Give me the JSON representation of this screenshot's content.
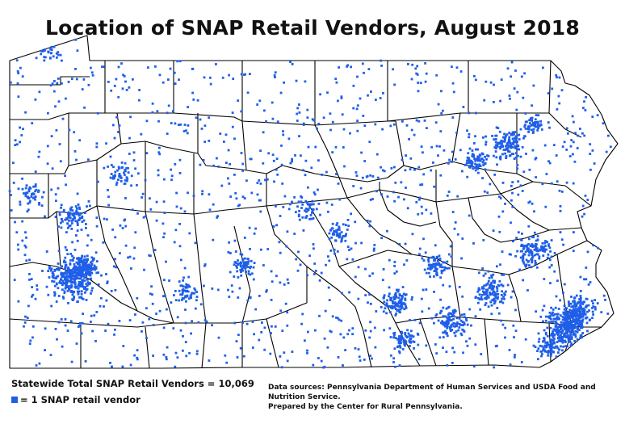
{
  "title": "Location of SNAP Retail Vendors, August 2018",
  "statewide_total": "Statewide Total SNAP Retail Vendors = 10,069",
  "legend": {
    "label": "= 1 SNAP retail vendor",
    "swatch_color": "#1f5fe8"
  },
  "sources": {
    "line1": "Data sources: Pennsylvania Department of Human Services and USDA Food and Nutrition Service.",
    "line2": "Prepared by the Center for Rural Pennsylvania."
  },
  "map": {
    "region": "Pennsylvania",
    "outline_color": "#000000",
    "dot_color": "#1f5fe8"
  }
}
